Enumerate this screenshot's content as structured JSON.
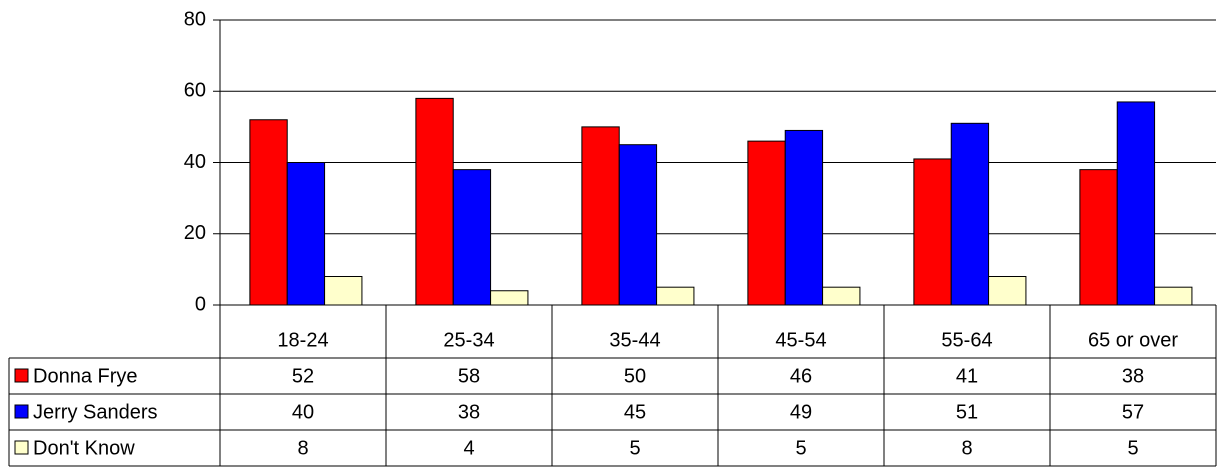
{
  "chart_data": {
    "type": "bar",
    "categories": [
      "18-24",
      "25-34",
      "35-44",
      "45-54",
      "55-64",
      "65 or over"
    ],
    "series": [
      {
        "name": "Donna Frye",
        "color": "#ff0000",
        "values": [
          52,
          58,
          50,
          46,
          41,
          38
        ]
      },
      {
        "name": "Jerry Sanders",
        "color": "#0000ff",
        "values": [
          40,
          38,
          45,
          49,
          51,
          57
        ]
      },
      {
        "name": "Don't Know",
        "color": "#ffffcc",
        "values": [
          8,
          4,
          5,
          5,
          8,
          5
        ]
      }
    ],
    "ylim": [
      0,
      80
    ],
    "yticks": [
      0,
      20,
      40,
      60,
      80
    ],
    "grid": true,
    "data_table": true
  }
}
